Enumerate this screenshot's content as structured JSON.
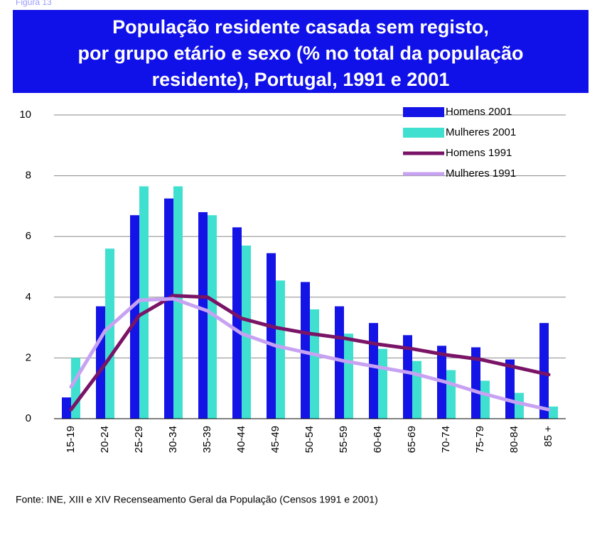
{
  "label": "Figura 13",
  "chart_data": {
    "type": "bar",
    "title": [
      "População residente casada sem registo,",
      "por grupo etário e sexo (% no total da população",
      "residente), Portugal, 1991 e 2001"
    ],
    "categories": [
      "15-19",
      "20-24",
      "25-29",
      "30-34",
      "35-39",
      "40-44",
      "45-49",
      "50-54",
      "55-59",
      "60-64",
      "65-69",
      "70-74",
      "75-79",
      "80-84",
      "85 +"
    ],
    "series": [
      {
        "name": "Homens 2001",
        "type": "bar",
        "color": "#1414e6",
        "values": [
          0.7,
          3.7,
          6.7,
          7.25,
          6.8,
          6.3,
          5.45,
          4.5,
          3.7,
          3.15,
          2.75,
          2.4,
          2.35,
          1.95,
          3.15
        ]
      },
      {
        "name": "Mulheres 2001",
        "type": "bar",
        "color": "#40e0d0",
        "values": [
          2.0,
          5.6,
          7.65,
          7.65,
          6.7,
          5.7,
          4.55,
          3.6,
          2.8,
          2.3,
          1.9,
          1.6,
          1.25,
          0.85,
          0.4
        ]
      },
      {
        "name": "Homens 1991",
        "type": "line",
        "color": "#7a1466",
        "values": [
          0.3,
          1.8,
          3.4,
          4.05,
          4.0,
          3.3,
          3.0,
          2.8,
          2.65,
          2.45,
          2.3,
          2.1,
          1.95,
          1.7,
          1.45
        ]
      },
      {
        "name": "Mulheres 1991",
        "type": "line",
        "color": "#c8a2f2",
        "values": [
          1.05,
          2.9,
          3.9,
          3.95,
          3.55,
          2.8,
          2.4,
          2.15,
          1.9,
          1.7,
          1.5,
          1.2,
          0.85,
          0.55,
          0.3
        ]
      }
    ],
    "ylim": [
      0,
      10
    ],
    "yticks": [
      0,
      2,
      4,
      6,
      8,
      10
    ],
    "grid": true,
    "legend": "top-right",
    "source": "Fonte: INE, XIII e XIV Recenseamento Geral da População (Censos 1991 e 2001)"
  }
}
